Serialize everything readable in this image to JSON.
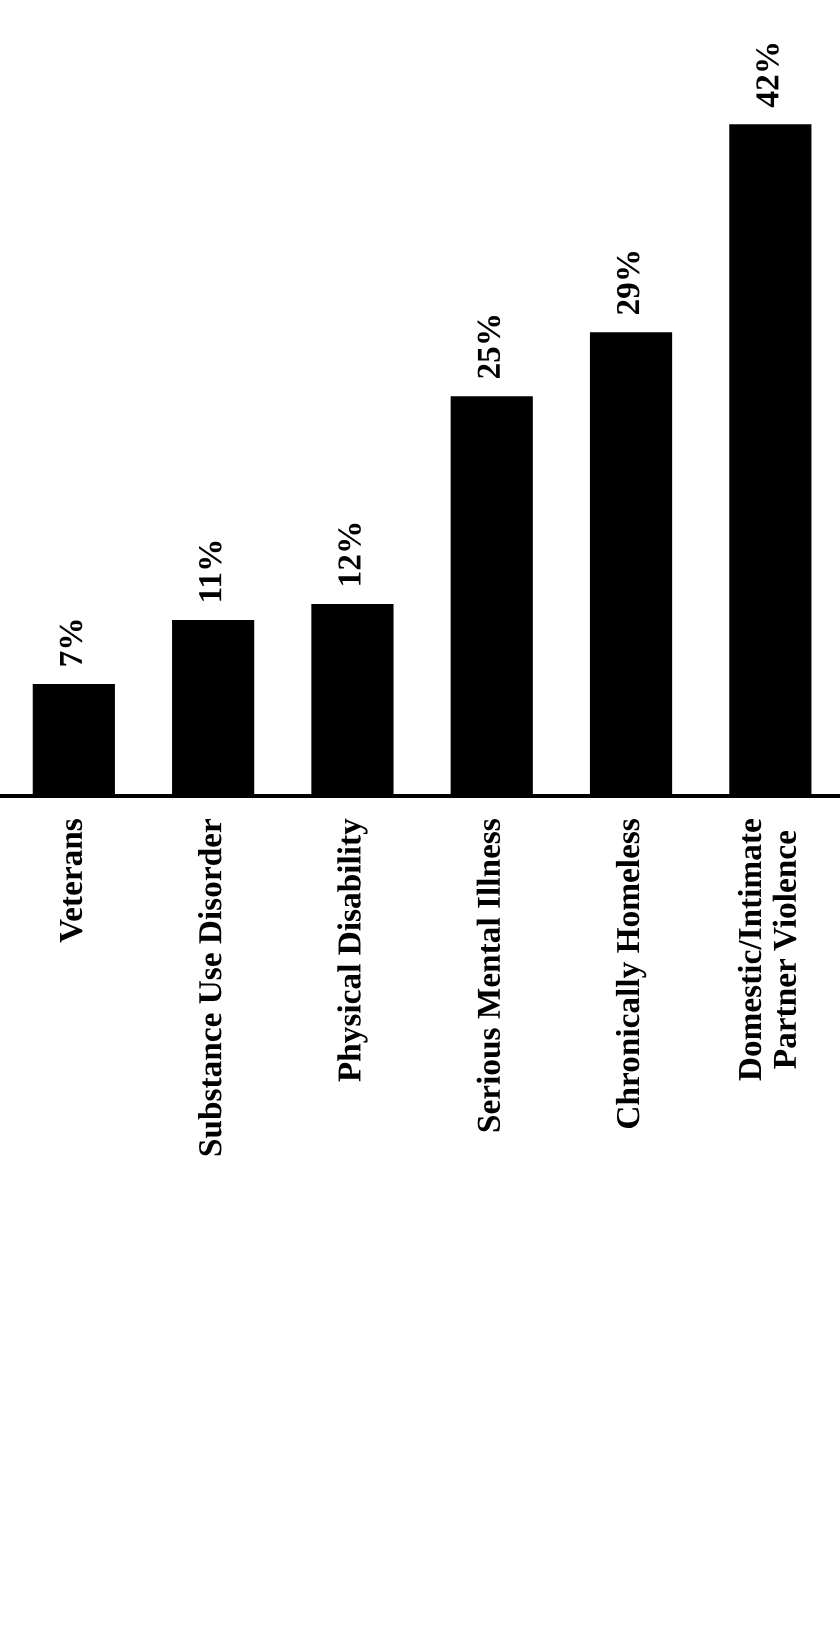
{
  "chart_data": {
    "type": "bar",
    "categories": [
      "Veterans",
      "Substance Use Disorder",
      "Physical Disability",
      "Serious Mental Illness",
      "Chronically Homeless",
      "Domestic/Intimate\nPartner Violence"
    ],
    "values": [
      7,
      11,
      12,
      25,
      29,
      42
    ],
    "color": "#000000",
    "value_labels": [
      "7%",
      "11%",
      "12%",
      "25%",
      "29%",
      "42%"
    ],
    "grid": false,
    "legend": false
  }
}
